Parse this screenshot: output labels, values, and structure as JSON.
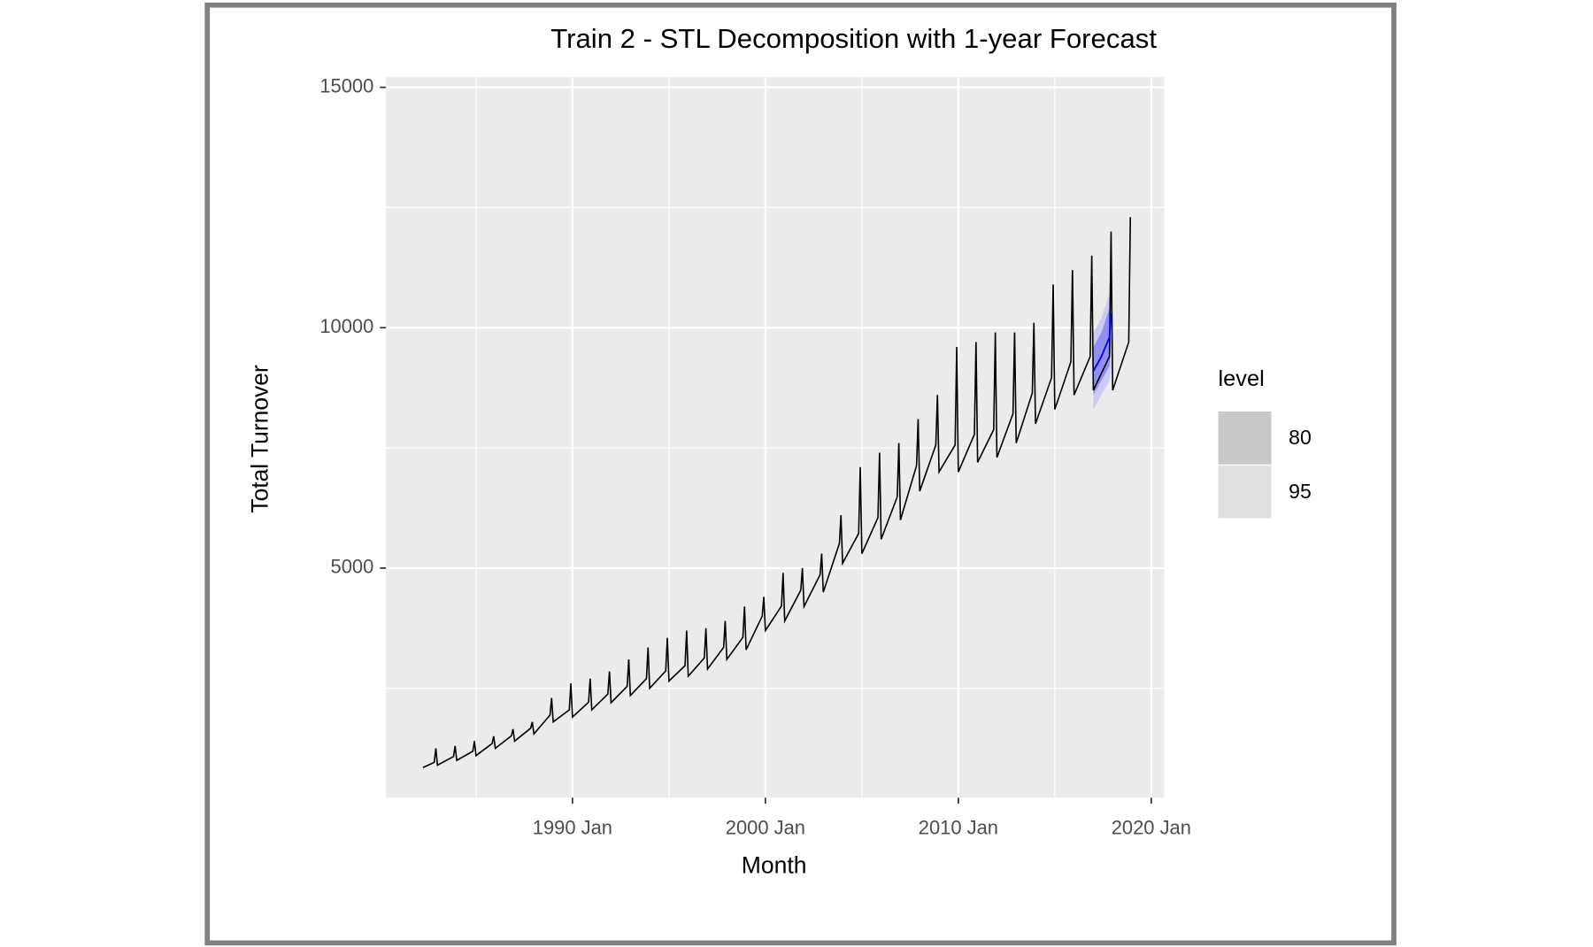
{
  "chart_data": {
    "type": "line",
    "title": "Train 2 - STL Decomposition with 1-year Forecast",
    "x_label": "Month",
    "y_label": "Total Turnover",
    "xlim": [
      "1980 May",
      "2020 Sep"
    ],
    "xticks": [
      "1990 Jan",
      "2000 Jan",
      "2010 Jan",
      "2020 Jan"
    ],
    "x_minor_ticks": [
      "1985 Jan",
      "1995 Jan",
      "2005 Jan",
      "2015 Jan"
    ],
    "ylim": [
      225,
      15210
    ],
    "yticks": [
      5000,
      10000,
      15000
    ],
    "y_minor_ticks": [
      2500,
      7500,
      12500
    ],
    "grid": true,
    "legend_title": "level",
    "legend_position": "right",
    "actual": {
      "color": "#000000",
      "x": [
        "1982 Apr",
        "1982 Nov",
        "1982 Dec",
        "1983 Jan",
        "1983 Nov",
        "1983 Dec",
        "1984 Jan",
        "1984 Nov",
        "1984 Dec",
        "1985 Jan",
        "1985 Nov",
        "1985 Dec",
        "1986 Jan",
        "1986 Nov",
        "1986 Dec",
        "1987 Jan",
        "1987 Nov",
        "1987 Dec",
        "1988 Jan",
        "1988 Nov",
        "1988 Dec",
        "1989 Jan",
        "1989 Nov",
        "1989 Dec",
        "1990 Jan",
        "1990 Nov",
        "1990 Dec",
        "1991 Jan",
        "1991 Nov",
        "1991 Dec",
        "1992 Jan",
        "1992 Nov",
        "1992 Dec",
        "1993 Jan",
        "1993 Nov",
        "1993 Dec",
        "1994 Jan",
        "1994 Nov",
        "1994 Dec",
        "1995 Jan",
        "1995 Nov",
        "1995 Dec",
        "1996 Jan",
        "1996 Nov",
        "1996 Dec",
        "1997 Jan",
        "1997 Nov",
        "1997 Dec",
        "1998 Jan",
        "1998 Nov",
        "1998 Dec",
        "1999 Jan",
        "1999 Nov",
        "1999 Dec",
        "2000 Jan",
        "2000 Nov",
        "2000 Dec",
        "2001 Jan",
        "2001 Nov",
        "2001 Dec",
        "2002 Jan",
        "2002 Nov",
        "2002 Dec",
        "2003 Jan",
        "2003 Nov",
        "2003 Dec",
        "2004 Jan",
        "2004 Nov",
        "2004 Dec",
        "2005 Jan",
        "2005 Nov",
        "2005 Dec",
        "2006 Jan",
        "2006 Nov",
        "2006 Dec",
        "2007 Jan",
        "2007 Nov",
        "2007 Dec",
        "2008 Jan",
        "2008 Nov",
        "2008 Dec",
        "2009 Jan",
        "2009 Nov",
        "2009 Dec",
        "2010 Jan",
        "2010 Nov",
        "2010 Dec",
        "2011 Jan",
        "2011 Nov",
        "2011 Dec",
        "2012 Jan",
        "2012 Nov",
        "2012 Dec",
        "2013 Jan",
        "2013 Nov",
        "2013 Dec",
        "2014 Jan",
        "2014 Nov",
        "2014 Dec",
        "2015 Jan",
        "2015 Nov",
        "2015 Dec",
        "2016 Jan",
        "2016 Nov",
        "2016 Dec",
        "2017 Jan",
        "2017 Nov",
        "2017 Dec",
        "2018 Jan",
        "2018 Nov",
        "2018 Dec"
      ],
      "values": [
        850,
        960,
        1250,
        900,
        1080,
        1300,
        1000,
        1190,
        1400,
        1100,
        1350,
        1500,
        1250,
        1510,
        1650,
        1400,
        1670,
        1800,
        1550,
        1940,
        2300,
        1800,
        2050,
        2600,
        1900,
        2210,
        2700,
        2050,
        2380,
        2850,
        2200,
        2540,
        3100,
        2350,
        2700,
        3350,
        2500,
        2860,
        3550,
        2650,
        2970,
        3700,
        2750,
        3130,
        3750,
        2900,
        3350,
        3900,
        3100,
        3560,
        4200,
        3300,
        4000,
        4400,
        3700,
        4210,
        4900,
        3900,
        4540,
        5000,
        4200,
        4860,
        5300,
        4500,
        5510,
        6100,
        5100,
        5720,
        7100,
        5300,
        6050,
        7400,
        5600,
        6480,
        7600,
        6000,
        7130,
        8100,
        6600,
        7560,
        8600,
        7000,
        7560,
        9600,
        7000,
        7780,
        9700,
        7200,
        7880,
        9900,
        7300,
        8210,
        9900,
        7600,
        8640,
        10100,
        8000,
        8960,
        10900,
        8300,
        9290,
        11200,
        8600,
        9400,
        11500,
        8700,
        9400,
        12000,
        8700,
        9700,
        12300
      ]
    },
    "forecast": {
      "color": "#0000ff",
      "x": [
        "2017 Jan",
        "2017 Jun",
        "2017 Nov",
        "2017 Dec"
      ],
      "values": [
        9100,
        9400,
        9800,
        10300
      ],
      "intervals": [
        {
          "level": "80",
          "color": "#8686ee",
          "legend_color": "#c8c8c8",
          "lower": [
            8600,
            8900,
            9200,
            9600
          ],
          "upper": [
            9600,
            9900,
            10400,
            11000
          ]
        },
        {
          "level": "95",
          "color": "#c4c4f5",
          "legend_color": "#e0e0e0",
          "lower": [
            8300,
            8600,
            8900,
            9200
          ],
          "upper": [
            9900,
            10200,
            10700,
            11400
          ]
        }
      ]
    }
  }
}
